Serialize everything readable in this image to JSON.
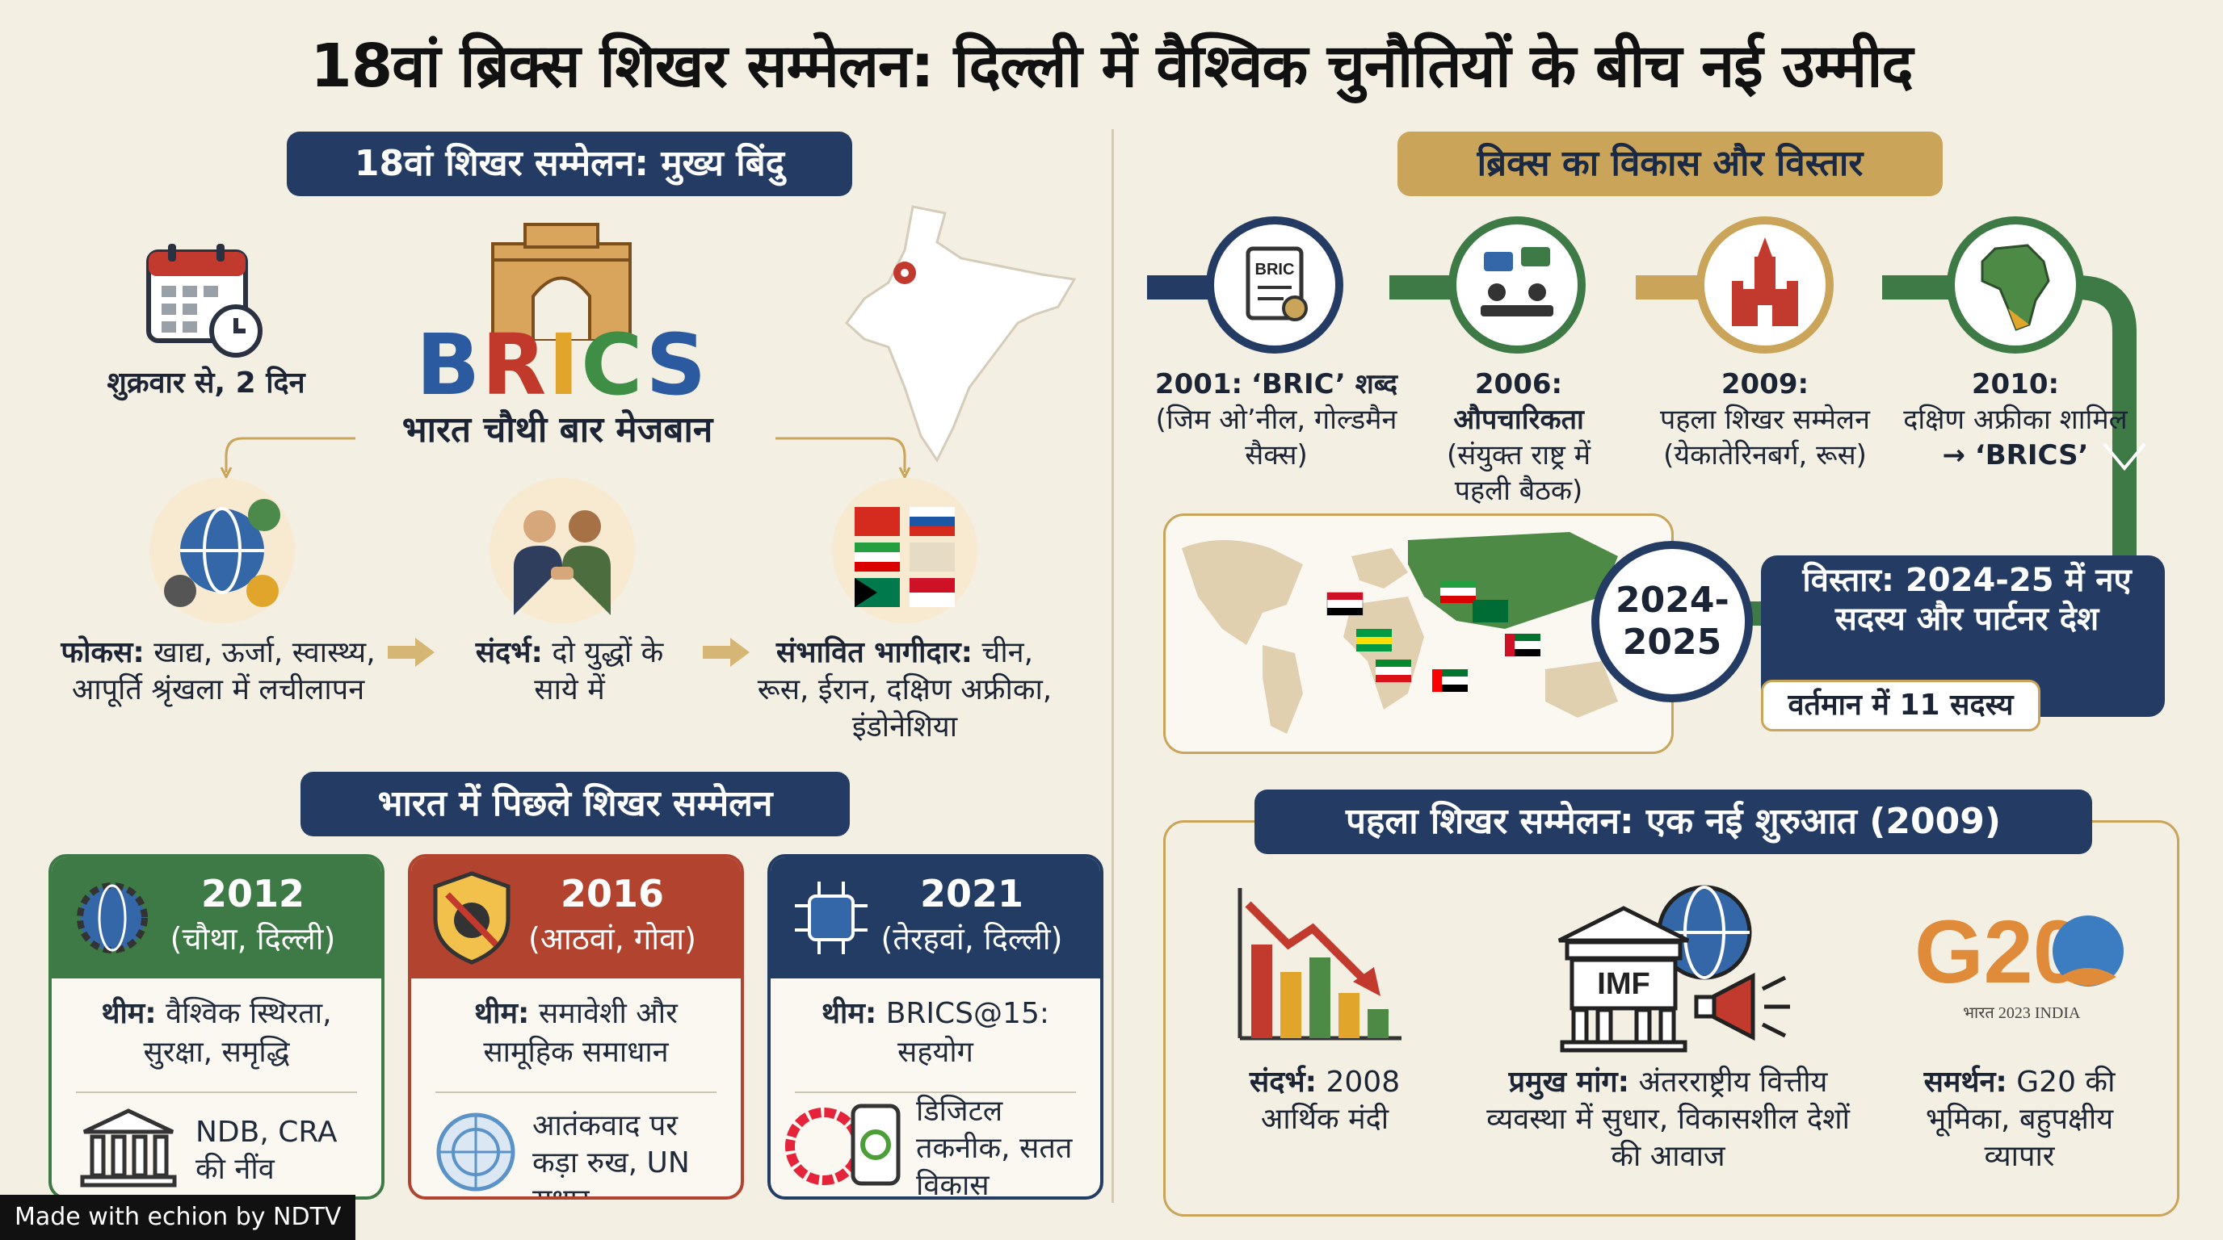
{
  "title": "18वां ब्रिक्स शिखर सम्मेलन: दिल्ली में वैश्विक चुनौतियों के बीच नई उम्मीद",
  "left": {
    "header": "18वां शिखर सम्मेलन: मुख्य बिंदु",
    "date_label": "शुक्रवार से, 2 दिन",
    "brics_logo": "BRICS",
    "host_label": "भारत चौथी बार मेजबान",
    "points": [
      {
        "label": "फोकस:",
        "text": "खाद्य, ऊर्जा, स्वास्थ्य, आपूर्ति श्रृंखला में लचीलापन"
      },
      {
        "label": "संदर्भ:",
        "text": "दो युद्धों के साये में"
      },
      {
        "label": "संभावित भागीदार:",
        "text": "चीन, रूस, ईरान, दक्षिण अफ्रीका, इंडोनेशिया"
      }
    ],
    "previous_header": "भारत में पिछले शिखर सम्मेलन",
    "cards": [
      {
        "year": "2012",
        "sub": "(चौथा, दिल्ली)",
        "theme_label": "थीम:",
        "theme": "वैश्विक स्थिरता, सुरक्षा, समृद्धि",
        "foot": "NDB, CRA की नींव",
        "color": "#3d7a45"
      },
      {
        "year": "2016",
        "sub": "(आठवां, गोवा)",
        "theme_label": "थीम:",
        "theme": "समावेशी और सामूहिक समाधान",
        "foot": "आतंकवाद पर कड़ा रुख, UN सुधार",
        "color": "#b2432f"
      },
      {
        "year": "2021",
        "sub": "(तेरहवां, दिल्ली)",
        "theme_label": "थीम:",
        "theme": "BRICS@15: सहयोग",
        "foot": "डिजिटल तकनीक, सतत विकास",
        "color": "#233c63"
      }
    ]
  },
  "right": {
    "header": "ब्रिक्स का विकास और विस्तार",
    "timeline": [
      {
        "year": "2001:",
        "title": "‘BRIC’ शब्द",
        "text": "(जिम ओ’नील, गोल्डमैन सैक्स)",
        "icon_text": "BRIC"
      },
      {
        "year": "2006:",
        "title": "औपचारिकता",
        "text": "(संयुक्त राष्ट्र में पहली बैठक)"
      },
      {
        "year": "2009:",
        "title": "पहला शिखर सम्मेलन",
        "text": "(येकातेरिनबर्ग, रूस)"
      },
      {
        "year": "2010:",
        "title": "दक्षिण अफ्रीका शामिल",
        "text": "→ ‘BRICS’"
      }
    ],
    "expansion_years": "2024-2025",
    "expansion_text": "विस्तार: 2024-25 में नए सदस्य और पार्टनर देश",
    "members_text": "वर्तमान में 11 सदस्य",
    "first_summit_header": "पहला शिखर सम्मेलन: एक नई शुरुआत (2009)",
    "first_summit_items": [
      {
        "label": "संदर्भ:",
        "text": "2008 आर्थिक मंदी"
      },
      {
        "label": "प्रमुख मांग:",
        "text": "अंतरराष्ट्रीय वित्तीय व्यवस्था में सुधार, विकासशील देशों की आवाज",
        "icon_text": "IMF"
      },
      {
        "label": "समर्थन:",
        "text": "G20 की भूमिका, बहुपक्षीय व्यापार",
        "logo_text": "G20",
        "logo_sub": "भारत 2023 INDIA"
      }
    ]
  },
  "watermark": "Made with echion by NDTV",
  "colors": {
    "navy": "#243c64",
    "gold": "#c9a459",
    "green": "#3d7a45",
    "red": "#b2432f",
    "bg": "#f4efe3"
  }
}
